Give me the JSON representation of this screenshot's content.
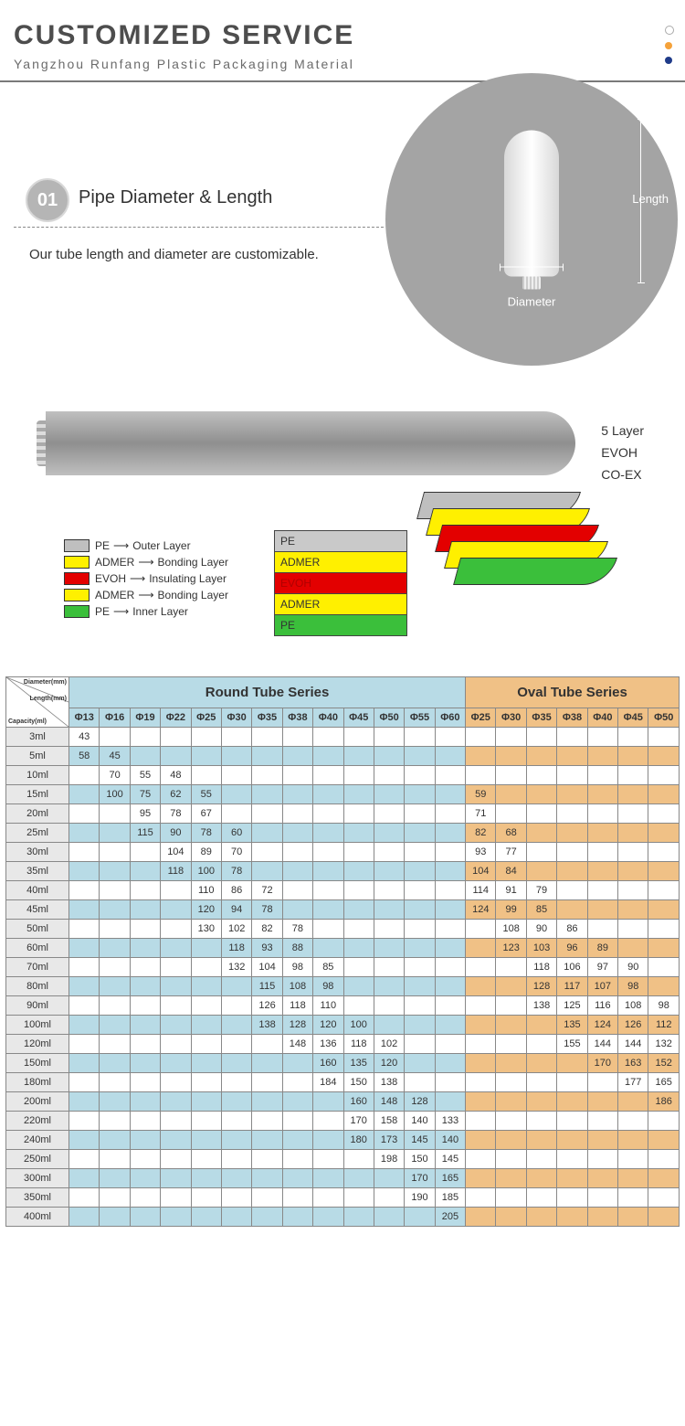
{
  "header": {
    "title": "CUSTOMIZED SERVICE",
    "subtitle": "Yangzhou Runfang Plastic Packaging Material"
  },
  "section1": {
    "num": "01",
    "title": "Pipe Diameter & Length",
    "desc": "Our tube length and diameter are customizable.",
    "diagram": {
      "diameter_label": "Diameter",
      "length_label": "Length"
    }
  },
  "layers": {
    "right_labels": [
      "5 Layer",
      "EVOH",
      "CO-EX"
    ],
    "legend": [
      {
        "color": "#bfbfbf",
        "mat": "PE",
        "role": "Outer Layer"
      },
      {
        "color": "#fff000",
        "mat": "ADMER",
        "role": "Bonding Layer"
      },
      {
        "color": "#e30000",
        "mat": "EVOH",
        "role": "Insulating Layer"
      },
      {
        "color": "#fff000",
        "mat": "ADMER",
        "role": "Bonding Layer"
      },
      {
        "color": "#3bbf3b",
        "mat": "PE",
        "role": "Inner Layer"
      }
    ],
    "stack": [
      {
        "label": "PE",
        "bg": "#c9c9c9",
        "fg": "#333"
      },
      {
        "label": "ADMER",
        "bg": "#fff000",
        "fg": "#333"
      },
      {
        "label": "EVOH",
        "bg": "#e30000",
        "fg": "#b00000"
      },
      {
        "label": "ADMER",
        "bg": "#fff000",
        "fg": "#333"
      },
      {
        "label": "PE",
        "bg": "#3bbf3b",
        "fg": "#333"
      }
    ],
    "peel_colors": [
      "#bfbfbf",
      "#fff000",
      "#e30000",
      "#fff000",
      "#3bbf3b"
    ]
  },
  "table": {
    "corner_labels": [
      "Diameter(mm)",
      "Length(mm)",
      "Capacity(ml)"
    ],
    "round_header": "Round Tube Series",
    "oval_header": "Oval Tube Series",
    "round_cols": [
      "Φ13",
      "Φ16",
      "Φ19",
      "Φ22",
      "Φ25",
      "Φ30",
      "Φ35",
      "Φ38",
      "Φ40",
      "Φ45",
      "Φ50",
      "Φ55",
      "Φ60"
    ],
    "oval_cols": [
      "Φ25",
      "Φ30",
      "Φ35",
      "Φ38",
      "Φ40",
      "Φ45",
      "Φ50"
    ],
    "colors": {
      "round_bg": "#b8dbe6",
      "oval_bg": "#f0c186",
      "cap_bg": "#e8e8e8",
      "border": "#888888"
    },
    "rows": [
      {
        "cap": "3ml",
        "round": [
          "43",
          "",
          "",
          "",
          "",
          "",
          "",
          "",
          "",
          "",
          "",
          "",
          ""
        ],
        "oval": [
          "",
          "",
          "",
          "",
          "",
          "",
          ""
        ]
      },
      {
        "cap": "5ml",
        "round": [
          "58",
          "45",
          "",
          "",
          "",
          "",
          "",
          "",
          "",
          "",
          "",
          "",
          ""
        ],
        "oval": [
          "",
          "",
          "",
          "",
          "",
          "",
          ""
        ]
      },
      {
        "cap": "10ml",
        "round": [
          "",
          "70",
          "55",
          "48",
          "",
          "",
          "",
          "",
          "",
          "",
          "",
          "",
          ""
        ],
        "oval": [
          "",
          "",
          "",
          "",
          "",
          "",
          ""
        ]
      },
      {
        "cap": "15ml",
        "round": [
          "",
          "100",
          "75",
          "62",
          "55",
          "",
          "",
          "",
          "",
          "",
          "",
          "",
          ""
        ],
        "oval": [
          "59",
          "",
          "",
          "",
          "",
          "",
          ""
        ]
      },
      {
        "cap": "20ml",
        "round": [
          "",
          "",
          "95",
          "78",
          "67",
          "",
          "",
          "",
          "",
          "",
          "",
          "",
          ""
        ],
        "oval": [
          "71",
          "",
          "",
          "",
          "",
          "",
          ""
        ]
      },
      {
        "cap": "25ml",
        "round": [
          "",
          "",
          "115",
          "90",
          "78",
          "60",
          "",
          "",
          "",
          "",
          "",
          "",
          ""
        ],
        "oval": [
          "82",
          "68",
          "",
          "",
          "",
          "",
          ""
        ]
      },
      {
        "cap": "30ml",
        "round": [
          "",
          "",
          "",
          "104",
          "89",
          "70",
          "",
          "",
          "",
          "",
          "",
          "",
          ""
        ],
        "oval": [
          "93",
          "77",
          "",
          "",
          "",
          "",
          ""
        ]
      },
      {
        "cap": "35ml",
        "round": [
          "",
          "",
          "",
          "118",
          "100",
          "78",
          "",
          "",
          "",
          "",
          "",
          "",
          ""
        ],
        "oval": [
          "104",
          "84",
          "",
          "",
          "",
          "",
          ""
        ]
      },
      {
        "cap": "40ml",
        "round": [
          "",
          "",
          "",
          "",
          "110",
          "86",
          "72",
          "",
          "",
          "",
          "",
          "",
          ""
        ],
        "oval": [
          "114",
          "91",
          "79",
          "",
          "",
          "",
          ""
        ]
      },
      {
        "cap": "45ml",
        "round": [
          "",
          "",
          "",
          "",
          "120",
          "94",
          "78",
          "",
          "",
          "",
          "",
          "",
          ""
        ],
        "oval": [
          "124",
          "99",
          "85",
          "",
          "",
          "",
          ""
        ]
      },
      {
        "cap": "50ml",
        "round": [
          "",
          "",
          "",
          "",
          "130",
          "102",
          "82",
          "78",
          "",
          "",
          "",
          "",
          ""
        ],
        "oval": [
          "",
          "108",
          "90",
          "86",
          "",
          "",
          ""
        ]
      },
      {
        "cap": "60ml",
        "round": [
          "",
          "",
          "",
          "",
          "",
          "118",
          "93",
          "88",
          "",
          "",
          "",
          "",
          ""
        ],
        "oval": [
          "",
          "123",
          "103",
          "96",
          "89",
          "",
          ""
        ]
      },
      {
        "cap": "70ml",
        "round": [
          "",
          "",
          "",
          "",
          "",
          "132",
          "104",
          "98",
          "85",
          "",
          "",
          "",
          ""
        ],
        "oval": [
          "",
          "",
          "118",
          "106",
          "97",
          "90",
          ""
        ]
      },
      {
        "cap": "80ml",
        "round": [
          "",
          "",
          "",
          "",
          "",
          "",
          "115",
          "108",
          "98",
          "",
          "",
          "",
          ""
        ],
        "oval": [
          "",
          "",
          "128",
          "117",
          "107",
          "98",
          ""
        ]
      },
      {
        "cap": "90ml",
        "round": [
          "",
          "",
          "",
          "",
          "",
          "",
          "126",
          "118",
          "110",
          "",
          "",
          "",
          ""
        ],
        "oval": [
          "",
          "",
          "138",
          "125",
          "116",
          "108",
          "98"
        ]
      },
      {
        "cap": "100ml",
        "round": [
          "",
          "",
          "",
          "",
          "",
          "",
          "138",
          "128",
          "120",
          "100",
          "",
          "",
          ""
        ],
        "oval": [
          "",
          "",
          "",
          "135",
          "124",
          "126",
          "112"
        ]
      },
      {
        "cap": "120ml",
        "round": [
          "",
          "",
          "",
          "",
          "",
          "",
          "",
          "148",
          "136",
          "118",
          "102",
          "",
          ""
        ],
        "oval": [
          "",
          "",
          "",
          "155",
          "144",
          "144",
          "132"
        ]
      },
      {
        "cap": "150ml",
        "round": [
          "",
          "",
          "",
          "",
          "",
          "",
          "",
          "",
          "160",
          "135",
          "120",
          "",
          ""
        ],
        "oval": [
          "",
          "",
          "",
          "",
          "170",
          "163",
          "152"
        ]
      },
      {
        "cap": "180ml",
        "round": [
          "",
          "",
          "",
          "",
          "",
          "",
          "",
          "",
          "184",
          "150",
          "138",
          "",
          ""
        ],
        "oval": [
          "",
          "",
          "",
          "",
          "",
          "177",
          "165"
        ]
      },
      {
        "cap": "200ml",
        "round": [
          "",
          "",
          "",
          "",
          "",
          "",
          "",
          "",
          "",
          "160",
          "148",
          "128",
          ""
        ],
        "oval": [
          "",
          "",
          "",
          "",
          "",
          "",
          "186"
        ]
      },
      {
        "cap": "220ml",
        "round": [
          "",
          "",
          "",
          "",
          "",
          "",
          "",
          "",
          "",
          "170",
          "158",
          "140",
          "133"
        ],
        "oval": [
          "",
          "",
          "",
          "",
          "",
          "",
          ""
        ]
      },
      {
        "cap": "240ml",
        "round": [
          "",
          "",
          "",
          "",
          "",
          "",
          "",
          "",
          "",
          "180",
          "173",
          "145",
          "140"
        ],
        "oval": [
          "",
          "",
          "",
          "",
          "",
          "",
          ""
        ]
      },
      {
        "cap": "250ml",
        "round": [
          "",
          "",
          "",
          "",
          "",
          "",
          "",
          "",
          "",
          "",
          "198",
          "150",
          "145"
        ],
        "oval": [
          "",
          "",
          "",
          "",
          "",
          "",
          ""
        ]
      },
      {
        "cap": "300ml",
        "round": [
          "",
          "",
          "",
          "",
          "",
          "",
          "",
          "",
          "",
          "",
          "",
          "170",
          "165"
        ],
        "oval": [
          "",
          "",
          "",
          "",
          "",
          "",
          ""
        ]
      },
      {
        "cap": "350ml",
        "round": [
          "",
          "",
          "",
          "",
          "",
          "",
          "",
          "",
          "",
          "",
          "",
          "190",
          "185"
        ],
        "oval": [
          "",
          "",
          "",
          "",
          "",
          "",
          ""
        ]
      },
      {
        "cap": "400ml",
        "round": [
          "",
          "",
          "",
          "",
          "",
          "",
          "",
          "",
          "",
          "",
          "",
          "",
          "205"
        ],
        "oval": [
          "",
          "",
          "",
          "",
          "",
          "",
          ""
        ]
      }
    ]
  }
}
